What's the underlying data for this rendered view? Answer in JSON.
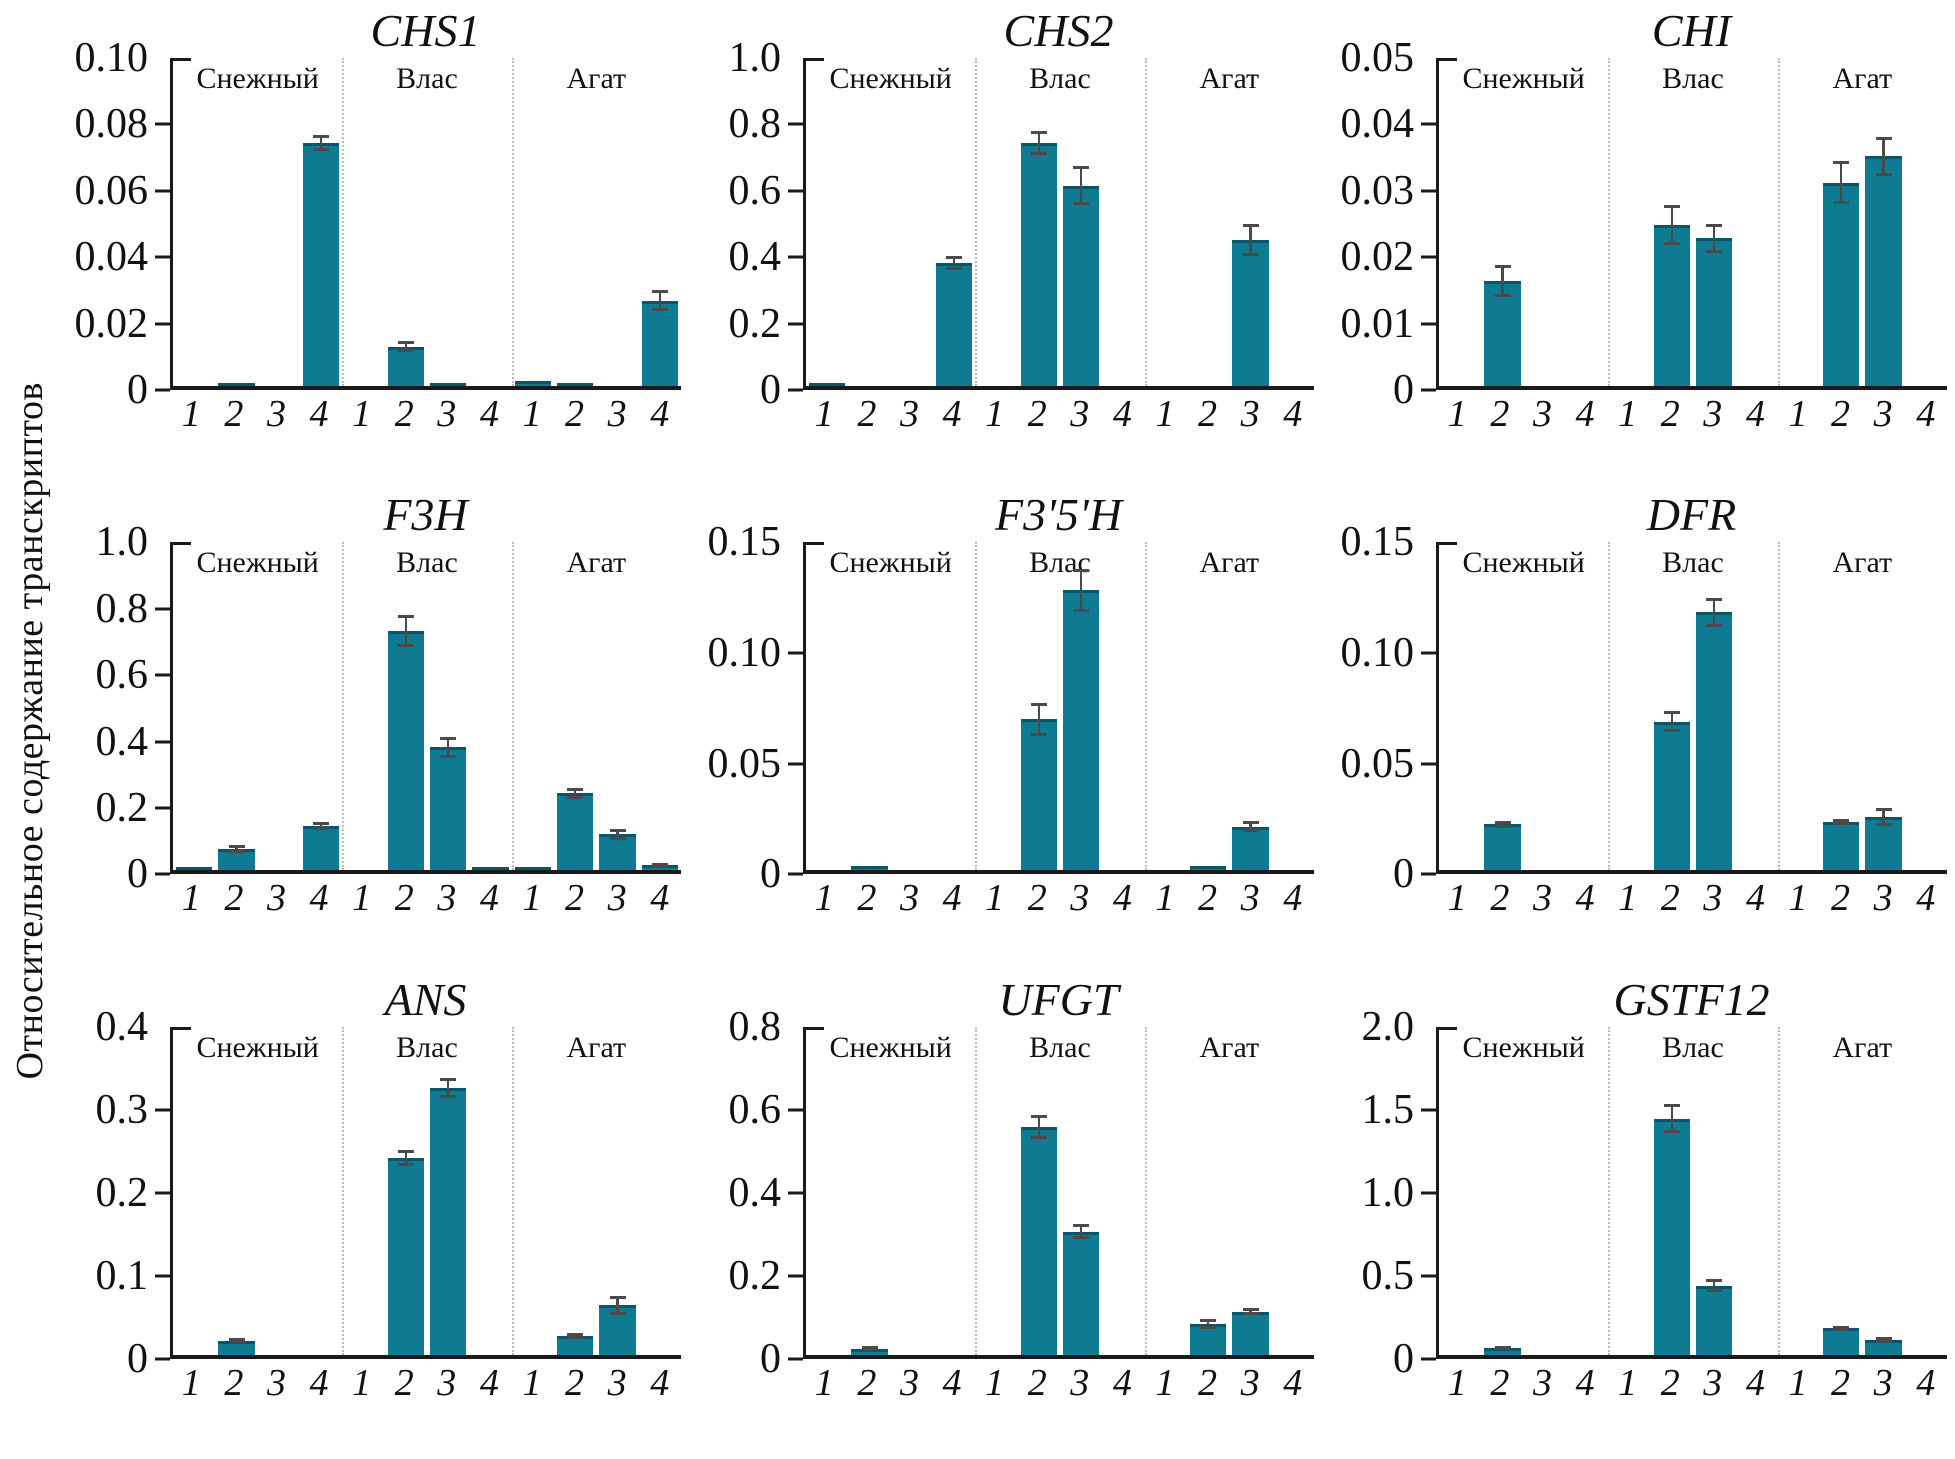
{
  "figure": {
    "ylabel": "Относительное содержание транскриптов"
  },
  "chart_data": {
    "type": "bar",
    "layout": "3x3 grid of grouped bar charts with error bars",
    "colors": {
      "bar_fill": "#0f7b92",
      "bar_top_edge": "#0a5668",
      "error_bar": "#4a4a4a",
      "axis": "#1a1a1a",
      "separator": "#b3bfc2"
    },
    "legend_position": "none",
    "grid": "off",
    "group_labels": [
      "Снежный",
      "Влас",
      "Агат"
    ],
    "x_tick_labels": [
      "1",
      "2",
      "3",
      "4"
    ],
    "panels": [
      {
        "title": "CHS1",
        "ymax": 0.1,
        "yticks": [
          [
            0,
            "0"
          ],
          [
            0.02,
            "0.02"
          ],
          [
            0.04,
            "0.04"
          ],
          [
            0.06,
            "0.06"
          ],
          [
            0.08,
            "0.08"
          ],
          [
            0.1,
            "0.10"
          ]
        ],
        "values": [
          [
            0,
            0.0006,
            0,
            0.074
          ],
          [
            0,
            0.012,
            0.0008,
            0
          ],
          [
            0.0015,
            0.001,
            0,
            0.026
          ]
        ],
        "errors": [
          [
            0,
            0,
            0,
            0.002
          ],
          [
            0,
            0.0012,
            0,
            0
          ],
          [
            0,
            0,
            0,
            0.0028
          ]
        ]
      },
      {
        "title": "CHS2",
        "ymax": 1.0,
        "yticks": [
          [
            0,
            "0"
          ],
          [
            0.2,
            "0.2"
          ],
          [
            0.4,
            "0.4"
          ],
          [
            0.6,
            "0.6"
          ],
          [
            0.8,
            "0.8"
          ],
          [
            1.0,
            "1.0"
          ]
        ],
        "values": [
          [
            0.004,
            0,
            0,
            0.375
          ],
          [
            0,
            0.74,
            0.61,
            0
          ],
          [
            0,
            0,
            0.445,
            0
          ]
        ],
        "errors": [
          [
            0,
            0,
            0,
            0.018
          ],
          [
            0,
            0.032,
            0.055,
            0
          ],
          [
            0,
            0,
            0.045,
            0
          ]
        ]
      },
      {
        "title": "CHI",
        "ymax": 0.05,
        "yticks": [
          [
            0,
            "0"
          ],
          [
            0.01,
            "0.01"
          ],
          [
            0.02,
            "0.02"
          ],
          [
            0.03,
            "0.03"
          ],
          [
            0.04,
            "0.04"
          ],
          [
            0.05,
            "0.05"
          ]
        ],
        "values": [
          [
            0,
            0.016,
            0,
            0
          ],
          [
            0,
            0.0245,
            0.0225,
            0
          ],
          [
            0,
            0.031,
            0.035,
            0
          ]
        ],
        "errors": [
          [
            0,
            0.0022,
            0,
            0
          ],
          [
            0,
            0.0028,
            0.002,
            0
          ],
          [
            0,
            0.003,
            0.0028,
            0
          ]
        ]
      },
      {
        "title": "F3H",
        "ymax": 1.0,
        "yticks": [
          [
            0,
            "0"
          ],
          [
            0.2,
            "0.2"
          ],
          [
            0.4,
            "0.4"
          ],
          [
            0.6,
            "0.6"
          ],
          [
            0.8,
            "0.8"
          ],
          [
            1.0,
            "1.0"
          ]
        ],
        "values": [
          [
            0.003,
            0.065,
            0,
            0.135
          ],
          [
            0,
            0.73,
            0.375,
            0.004
          ],
          [
            0.002,
            0.235,
            0.11,
            0.015
          ]
        ],
        "errors": [
          [
            0,
            0.007,
            0,
            0.008
          ],
          [
            0,
            0.045,
            0.028,
            0
          ],
          [
            0,
            0.012,
            0.012,
            0.002
          ]
        ]
      },
      {
        "title": "F3'5'H",
        "ymax": 0.15,
        "yticks": [
          [
            0,
            "0"
          ],
          [
            0.05,
            "0.05"
          ],
          [
            0.1,
            "0.10"
          ],
          [
            0.15,
            "0.15"
          ]
        ],
        "values": [
          [
            0,
            0.002,
            0,
            0
          ],
          [
            0,
            0.069,
            0.128,
            0
          ],
          [
            0,
            0.002,
            0.02,
            0
          ]
        ],
        "errors": [
          [
            0,
            0,
            0,
            0
          ],
          [
            0,
            0.007,
            0.009,
            0
          ],
          [
            0,
            0,
            0.002,
            0
          ]
        ]
      },
      {
        "title": "DFR",
        "ymax": 0.15,
        "yticks": [
          [
            0,
            "0"
          ],
          [
            0.05,
            "0.05"
          ],
          [
            0.1,
            "0.10"
          ],
          [
            0.15,
            "0.15"
          ]
        ],
        "values": [
          [
            0,
            0.021,
            0,
            0
          ],
          [
            0,
            0.068,
            0.118,
            0
          ],
          [
            0,
            0.022,
            0.0245,
            0
          ]
        ],
        "errors": [
          [
            0,
            0.0008,
            0,
            0
          ],
          [
            0,
            0.004,
            0.006,
            0
          ],
          [
            0,
            0.0008,
            0.0035,
            0
          ]
        ]
      },
      {
        "title": "ANS",
        "ymax": 0.4,
        "yticks": [
          [
            0,
            "0"
          ],
          [
            0.1,
            "0.1"
          ],
          [
            0.2,
            "0.2"
          ],
          [
            0.3,
            "0.3"
          ],
          [
            0.4,
            "0.4"
          ]
        ],
        "values": [
          [
            0,
            0.017,
            0,
            0
          ],
          [
            0,
            0.24,
            0.325,
            0
          ],
          [
            0,
            0.023,
            0.06,
            0
          ]
        ],
        "errors": [
          [
            0,
            0.001,
            0,
            0
          ],
          [
            0,
            0.008,
            0.01,
            0
          ],
          [
            0,
            0.0015,
            0.01,
            0
          ]
        ]
      },
      {
        "title": "UFGT",
        "ymax": 0.8,
        "yticks": [
          [
            0,
            "0"
          ],
          [
            0.2,
            "0.2"
          ],
          [
            0.4,
            "0.4"
          ],
          [
            0.6,
            "0.6"
          ],
          [
            0.8,
            "0.8"
          ]
        ],
        "values": [
          [
            0,
            0.015,
            0,
            0
          ],
          [
            0,
            0.555,
            0.3,
            0
          ],
          [
            0,
            0.075,
            0.105,
            0
          ]
        ],
        "errors": [
          [
            0,
            0.002,
            0,
            0
          ],
          [
            0,
            0.025,
            0.015,
            0
          ],
          [
            0,
            0.008,
            0.004,
            0
          ]
        ]
      },
      {
        "title": "GSTF12",
        "ymax": 2.0,
        "yticks": [
          [
            0,
            "0"
          ],
          [
            0.5,
            "0.5"
          ],
          [
            1.0,
            "1.0"
          ],
          [
            1.5,
            "1.5"
          ],
          [
            2.0,
            "2.0"
          ]
        ],
        "values": [
          [
            0,
            0.04,
            0,
            0
          ],
          [
            0,
            1.44,
            0.42,
            0
          ],
          [
            0,
            0.16,
            0.09,
            0
          ]
        ],
        "errors": [
          [
            0,
            0.004,
            0,
            0
          ],
          [
            0,
            0.08,
            0.03,
            0
          ],
          [
            0,
            0.006,
            0.008,
            0
          ]
        ]
      }
    ]
  }
}
